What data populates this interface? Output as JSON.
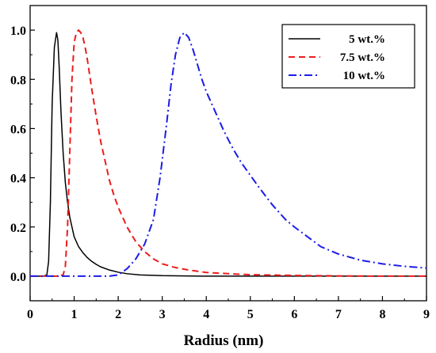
{
  "chart_data": {
    "type": "line",
    "title": "",
    "xlabel": "Radius (nm)",
    "ylabel": "",
    "xlim": [
      0,
      9
    ],
    "ylim": [
      -0.1,
      1.1
    ],
    "xticks": [
      "0",
      "1",
      "2",
      "3",
      "4",
      "5",
      "6",
      "7",
      "8",
      "9"
    ],
    "yticks": [
      "0.0",
      "0.2",
      "0.4",
      "0.6",
      "0.8",
      "1.0"
    ],
    "grid": false,
    "legend_position": "top-right",
    "series": [
      {
        "name": "5 wt.%",
        "color": "#000000",
        "dash": "solid",
        "x": [
          0,
          0.3,
          0.38,
          0.42,
          0.46,
          0.5,
          0.55,
          0.6,
          0.63,
          0.66,
          0.7,
          0.75,
          0.8,
          0.85,
          0.9,
          0.95,
          1.0,
          1.1,
          1.2,
          1.3,
          1.4,
          1.5,
          1.6,
          1.8,
          2.0,
          2.2,
          2.5,
          3.0,
          3.5,
          4.0,
          5.0,
          6.0,
          7.0,
          8.0,
          9.0
        ],
        "y": [
          0,
          0,
          0.005,
          0.06,
          0.3,
          0.7,
          0.93,
          0.99,
          0.96,
          0.85,
          0.67,
          0.5,
          0.38,
          0.3,
          0.24,
          0.2,
          0.16,
          0.12,
          0.095,
          0.075,
          0.06,
          0.048,
          0.038,
          0.025,
          0.016,
          0.01,
          0.005,
          0.002,
          0.001,
          0,
          0,
          0,
          0,
          0,
          0
        ]
      },
      {
        "name": "7.5 wt.%",
        "color": "#ee1c1c",
        "dash": "dashed",
        "x": [
          0,
          0.6,
          0.75,
          0.8,
          0.85,
          0.9,
          0.95,
          1.0,
          1.05,
          1.1,
          1.15,
          1.2,
          1.25,
          1.3,
          1.35,
          1.4,
          1.5,
          1.6,
          1.7,
          1.8,
          1.9,
          2.0,
          2.2,
          2.4,
          2.6,
          2.8,
          3.0,
          3.3,
          3.6,
          4.0,
          4.5,
          5.0,
          6.0,
          7.0,
          8.0,
          9.0
        ],
        "y": [
          0,
          0,
          0.005,
          0.04,
          0.2,
          0.5,
          0.8,
          0.95,
          0.99,
          1.0,
          0.99,
          0.97,
          0.93,
          0.88,
          0.82,
          0.76,
          0.65,
          0.55,
          0.47,
          0.39,
          0.33,
          0.28,
          0.2,
          0.14,
          0.1,
          0.07,
          0.05,
          0.035,
          0.025,
          0.015,
          0.01,
          0.006,
          0.003,
          0.001,
          0,
          0
        ]
      },
      {
        "name": "10 wt.%",
        "color": "#1c1ce8",
        "dash": "dashdot",
        "x": [
          0,
          1.8,
          2.0,
          2.2,
          2.4,
          2.6,
          2.8,
          2.95,
          3.1,
          3.2,
          3.3,
          3.4,
          3.5,
          3.6,
          3.7,
          3.8,
          3.9,
          4.0,
          4.2,
          4.4,
          4.6,
          4.8,
          5.0,
          5.2,
          5.5,
          5.8,
          6.0,
          6.3,
          6.6,
          7.0,
          7.5,
          8.0,
          8.5,
          9.0
        ],
        "y": [
          0,
          0,
          0.005,
          0.03,
          0.07,
          0.13,
          0.23,
          0.4,
          0.62,
          0.78,
          0.9,
          0.97,
          0.99,
          0.97,
          0.92,
          0.86,
          0.8,
          0.75,
          0.67,
          0.59,
          0.52,
          0.46,
          0.41,
          0.36,
          0.29,
          0.23,
          0.2,
          0.16,
          0.12,
          0.09,
          0.065,
          0.05,
          0.04,
          0.033
        ]
      }
    ]
  }
}
